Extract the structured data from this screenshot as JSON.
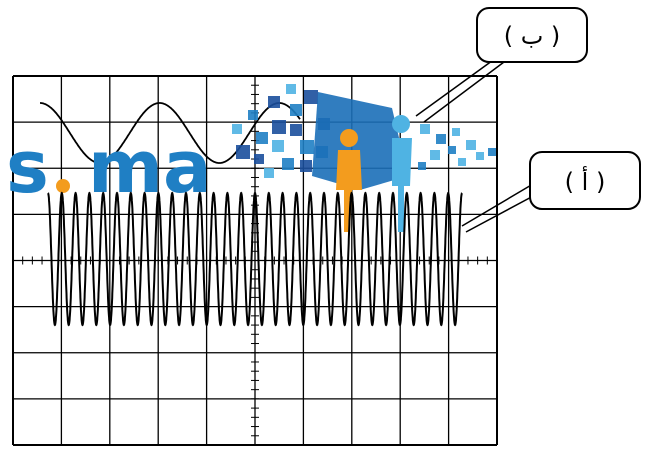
{
  "labels": {
    "a": "( أ )",
    "b": "( ب )"
  },
  "watermark": {
    "text_s": "s",
    "text_dot": ".",
    "text_ma": "ma",
    "color_blue": "#1f7fc4",
    "color_orange": "#f39c1e",
    "color_dark_blue": "#1b4f9c"
  },
  "colors": {
    "grid": "#000000",
    "wave": "#000000"
  },
  "diagram": {
    "grid_columns": 10,
    "grid_rows": 8,
    "wave_a_cycles": 30,
    "wave_b_cycles": 2.5
  }
}
